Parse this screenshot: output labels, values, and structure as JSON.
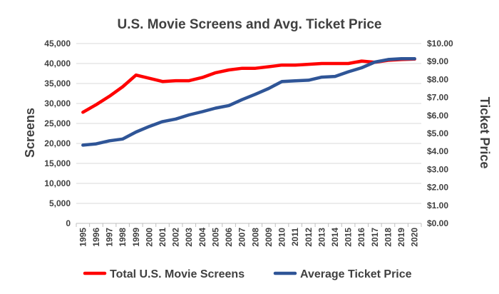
{
  "chart_data": {
    "type": "line",
    "title": "U.S. Movie Screens and Avg. Ticket Price",
    "xlabel": "",
    "ylabel": "Screens",
    "y2label": "Ticket Price",
    "x": [
      "1995",
      "1996",
      "1997",
      "1998",
      "1999",
      "2000",
      "2001",
      "2002",
      "2003",
      "2004",
      "2005",
      "2006",
      "2007",
      "2008",
      "2009",
      "2010",
      "2011",
      "2012",
      "2013",
      "2014",
      "2015",
      "2016",
      "2017",
      "2018",
      "2019",
      "2020"
    ],
    "ylim": [
      0,
      45000
    ],
    "y2lim": [
      0,
      10
    ],
    "y_ticks": [
      "0",
      "5,000",
      "10,000",
      "15,000",
      "20,000",
      "25,000",
      "30,000",
      "35,000",
      "40,000",
      "45,000"
    ],
    "y2_ticks": [
      "$0.00",
      "$1.00",
      "$2.00",
      "$3.00",
      "$4.00",
      "$5.00",
      "$6.00",
      "$7.00",
      "$8.00",
      "$9.00",
      "$10.00"
    ],
    "grid": true,
    "legend_position": "bottom",
    "series": [
      {
        "name": "Total U.S. Movie Screens",
        "axis": "left",
        "color": "#ff0000",
        "values": [
          27800,
          29700,
          31800,
          34200,
          37100,
          36300,
          35500,
          35700,
          35700,
          36500,
          37700,
          38400,
          38800,
          38800,
          39200,
          39600,
          39600,
          39800,
          40000,
          40000,
          40000,
          40600,
          40300,
          40800,
          41000,
          41100
        ]
      },
      {
        "name": "Average Ticket Price",
        "axis": "right",
        "color": "#2f5597",
        "values": [
          4.35,
          4.42,
          4.59,
          4.69,
          5.08,
          5.39,
          5.66,
          5.8,
          6.03,
          6.21,
          6.41,
          6.55,
          6.88,
          7.18,
          7.5,
          7.89,
          7.93,
          7.96,
          8.13,
          8.17,
          8.43,
          8.65,
          8.97,
          9.11,
          9.16,
          9.16
        ]
      }
    ]
  }
}
